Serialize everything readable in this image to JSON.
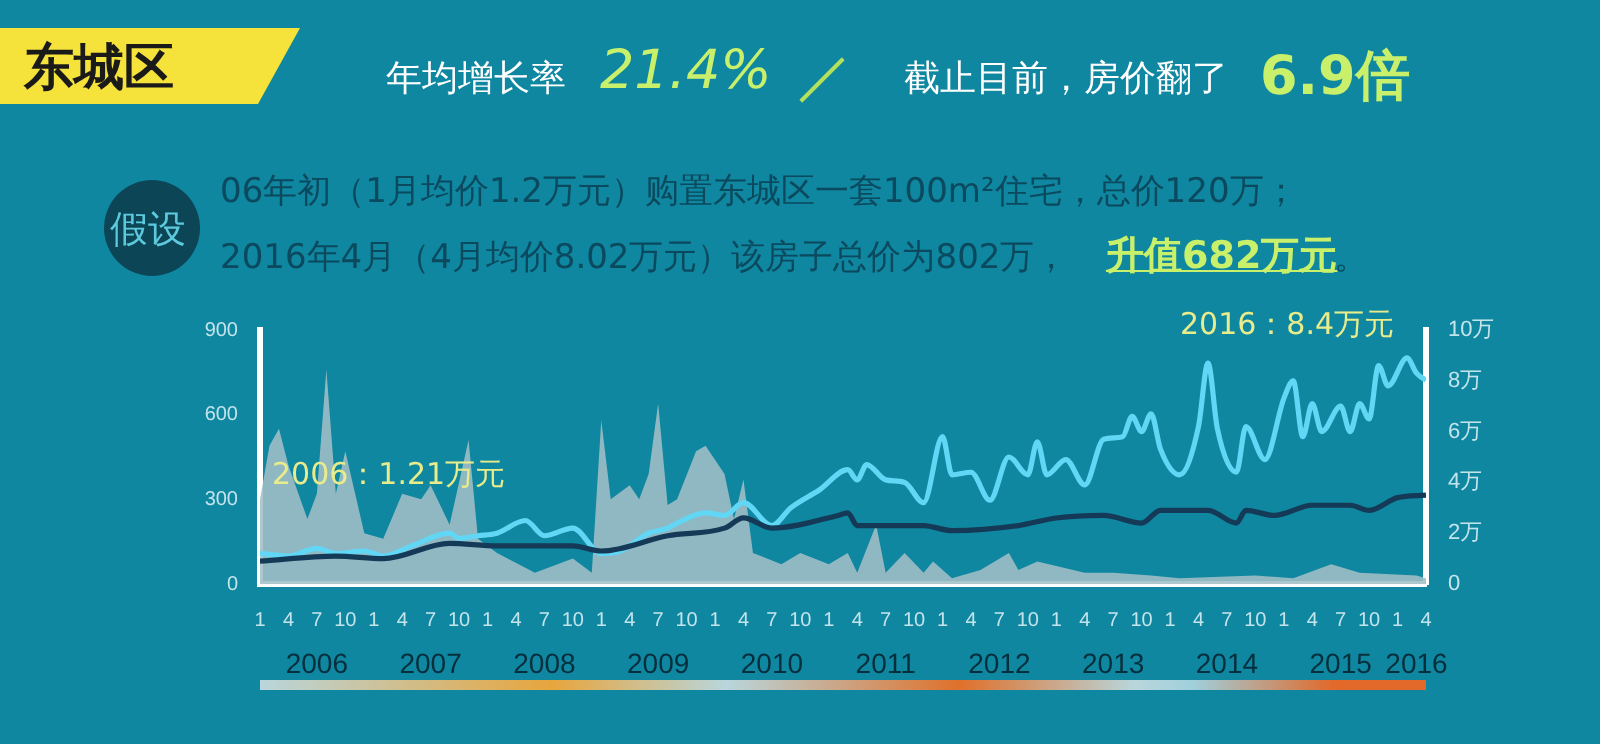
{
  "chart_data": {
    "type": "line",
    "title": "东城区",
    "annotations": [
      "年均增长率",
      "21.4%",
      "截止目前，房价翻了",
      "6.9倍",
      "假设",
      "06年初（1月均价1.2万元）购置东城区一套100m²住宅，总价120万；",
      "2016年4月（4月均价8.02万元）该房子总价为802万，",
      "升值682万元",
      "。",
      "2006：1.21万元",
      "2016：8.4万元"
    ],
    "xlim": [
      "2006-01",
      "2016-04"
    ],
    "xticks": [
      {
        "value": "2006-01",
        "label": "1"
      },
      {
        "value": "2006-04",
        "label": "4"
      },
      {
        "value": "2006-07",
        "label": "7"
      },
      {
        "value": "2006-10",
        "label": "10"
      },
      {
        "value": "2007-01",
        "label": "1"
      },
      {
        "value": "2007-04",
        "label": "4"
      },
      {
        "value": "2007-07",
        "label": "7"
      },
      {
        "value": "2007-10",
        "label": "10"
      },
      {
        "value": "2008-01",
        "label": "1"
      },
      {
        "value": "2008-04",
        "label": "4"
      },
      {
        "value": "2008-07",
        "label": "7"
      },
      {
        "value": "2008-10",
        "label": "10"
      },
      {
        "value": "2009-01",
        "label": "1"
      },
      {
        "value": "2009-04",
        "label": "4"
      },
      {
        "value": "2009-07",
        "label": "7"
      },
      {
        "value": "2009-10",
        "label": "10"
      },
      {
        "value": "2010-01",
        "label": "1"
      },
      {
        "value": "2010-04",
        "label": "4"
      },
      {
        "value": "2010-07",
        "label": "7"
      },
      {
        "value": "2010-10",
        "label": "10"
      },
      {
        "value": "2011-01",
        "label": "1"
      },
      {
        "value": "2011-04",
        "label": "4"
      },
      {
        "value": "2011-07",
        "label": "7"
      },
      {
        "value": "2011-10",
        "label": "10"
      },
      {
        "value": "2012-01",
        "label": "1"
      },
      {
        "value": "2012-04",
        "label": "4"
      },
      {
        "value": "2012-07",
        "label": "7"
      },
      {
        "value": "2012-10",
        "label": "10"
      },
      {
        "value": "2013-01",
        "label": "1"
      },
      {
        "value": "2013-04",
        "label": "4"
      },
      {
        "value": "2013-07",
        "label": "7"
      },
      {
        "value": "2013-10",
        "label": "10"
      },
      {
        "value": "2014-01",
        "label": "1"
      },
      {
        "value": "2014-04",
        "label": "4"
      },
      {
        "value": "2014-07",
        "label": "7"
      },
      {
        "value": "2014-10",
        "label": "10"
      },
      {
        "value": "2015-01",
        "label": "1"
      },
      {
        "value": "2015-04",
        "label": "4"
      },
      {
        "value": "2015-07",
        "label": "7"
      },
      {
        "value": "2015-10",
        "label": "10"
      },
      {
        "value": "2016-01",
        "label": "1"
      },
      {
        "value": "2016-04",
        "label": "4"
      }
    ],
    "x2lim": [
      "2006-01",
      "2016-04"
    ],
    "x2ticks": [
      {
        "value": "2006-07",
        "label": "2006"
      },
      {
        "value": "2007-07",
        "label": "2007"
      },
      {
        "value": "2008-07",
        "label": "2008"
      },
      {
        "value": "2009-07",
        "label": "2009"
      },
      {
        "value": "2010-07",
        "label": "2010"
      },
      {
        "value": "2011-07",
        "label": "2011"
      },
      {
        "value": "2012-07",
        "label": "2012"
      },
      {
        "value": "2013-07",
        "label": "2013"
      },
      {
        "value": "2014-07",
        "label": "2014"
      },
      {
        "value": "2015-07",
        "label": "2015"
      },
      {
        "value": "2016-03",
        "label": "2016"
      }
    ],
    "ylim": [
      0,
      900
    ],
    "yticks": [
      0,
      300,
      600,
      900
    ],
    "y2lim": [
      0,
      10
    ],
    "y2ticks": [
      0,
      {
        "value": 2,
        "label": "2万"
      },
      {
        "value": 4,
        "label": "4万"
      },
      {
        "value": 6,
        "label": "6万"
      },
      {
        "value": 8,
        "label": "8万"
      },
      {
        "value": 10,
        "label": "10万"
      }
    ],
    "series": [
      {
        "type": "area",
        "color": "#a3bfc6",
        "x": [
          "2006-01",
          "2006-02",
          "2006-03",
          "2006-04",
          "2006-06",
          "2006-07",
          "2006-08",
          "2006-09",
          "2006-10",
          "2006-12",
          "2007-02",
          "2007-04",
          "2007-06",
          "2007-07",
          "2007-09",
          "2007-11",
          "2007-12",
          "2008-02",
          "2008-06",
          "2008-10",
          "2008-12",
          "2009-01",
          "2009-02",
          "2009-04",
          "2009-05",
          "2009-06",
          "2009-07",
          "2009-08",
          "2009-09",
          "2009-11",
          "2009-12",
          "2010-02",
          "2010-03",
          "2010-04",
          "2010-05",
          "2010-08",
          "2010-10",
          "2011-01",
          "2011-03",
          "2011-04",
          "2011-06",
          "2011-07",
          "2011-09",
          "2011-11",
          "2011-12",
          "2012-02",
          "2012-05",
          "2012-08",
          "2012-09",
          "2012-11",
          "2013-04",
          "2013-07",
          "2013-11",
          "2014-02",
          "2014-10",
          "2015-02",
          "2015-06",
          "2015-09",
          "2016-03",
          "2016-04"
        ],
        "values": [
          300,
          490,
          550,
          420,
          230,
          320,
          760,
          320,
          470,
          180,
          160,
          320,
          300,
          350,
          210,
          510,
          160,
          110,
          40,
          90,
          40,
          580,
          300,
          350,
          300,
          390,
          640,
          280,
          300,
          470,
          490,
          390,
          230,
          370,
          110,
          70,
          110,
          70,
          110,
          40,
          210,
          40,
          110,
          40,
          80,
          20,
          50,
          110,
          50,
          80,
          40,
          40,
          30,
          20,
          30,
          20,
          70,
          40,
          30,
          20
        ]
      },
      {
        "type": "line",
        "axis": "y2",
        "color": "#62d6f5",
        "x": [
          "2006-01",
          "2006-04",
          "2006-07",
          "2006-09",
          "2006-12",
          "2007-02",
          "2007-05",
          "2007-09",
          "2007-10",
          "2007-12",
          "2008-02",
          "2008-05",
          "2008-07",
          "2008-10",
          "2009-01",
          "2009-03",
          "2009-06",
          "2009-08",
          "2009-09",
          "2009-12",
          "2010-02",
          "2010-04",
          "2010-07",
          "2010-09",
          "2010-12",
          "2011-03",
          "2011-04",
          "2011-05",
          "2011-07",
          "2011-09",
          "2011-11",
          "2012-01",
          "2012-02",
          "2012-04",
          "2012-06",
          "2012-08",
          "2012-10",
          "2012-11",
          "2012-12",
          "2013-02",
          "2013-04",
          "2013-06",
          "2013-08",
          "2013-09",
          "2013-10",
          "2013-11",
          "2013-12",
          "2014-02",
          "2014-04",
          "2014-05",
          "2014-06",
          "2014-08",
          "2014-09",
          "2014-11",
          "2015-01",
          "2015-02",
          "2015-03",
          "2015-04",
          "2015-05",
          "2015-07",
          "2015-08",
          "2015-09",
          "2015-10",
          "2015-11",
          "2015-12",
          "2016-02",
          "2016-03",
          "2016-04"
        ],
        "values": [
          1.21,
          1.1,
          1.4,
          1.2,
          1.3,
          1.1,
          1.5,
          2.0,
          1.8,
          1.9,
          2.0,
          2.5,
          1.9,
          2.2,
          1.2,
          1.3,
          2.0,
          2.2,
          2.4,
          2.8,
          2.7,
          3.2,
          2.3,
          3.0,
          3.7,
          4.5,
          4.1,
          4.7,
          4.1,
          4.0,
          3.2,
          5.8,
          4.3,
          4.4,
          3.3,
          5.0,
          4.3,
          5.6,
          4.3,
          4.9,
          3.9,
          5.7,
          5.8,
          6.6,
          6.0,
          6.7,
          5.3,
          4.3,
          6.2,
          8.7,
          6.1,
          4.4,
          6.2,
          4.9,
          7.3,
          8.0,
          5.8,
          7.1,
          6.0,
          7.0,
          6.0,
          7.1,
          6.5,
          8.6,
          7.8,
          8.9,
          8.3,
          8.02
        ]
      },
      {
        "type": "line",
        "axis": "y2",
        "color": "#143a57",
        "x": [
          "2006-01",
          "2006-09",
          "2007-02",
          "2007-09",
          "2008-02",
          "2008-10",
          "2009-01",
          "2009-08",
          "2010-02",
          "2010-04",
          "2010-07",
          "2011-02",
          "2011-03",
          "2011-04",
          "2011-11",
          "2012-02",
          "2012-09",
          "2013-01",
          "2013-06",
          "2013-10",
          "2013-12",
          "2014-05",
          "2014-08",
          "2014-09",
          "2014-12",
          "2015-04",
          "2015-08",
          "2015-10",
          "2016-01",
          "2016-04"
        ],
        "values": [
          0.9,
          1.1,
          1.0,
          1.6,
          1.5,
          1.5,
          1.3,
          1.9,
          2.2,
          2.6,
          2.2,
          2.7,
          2.8,
          2.3,
          2.3,
          2.1,
          2.3,
          2.6,
          2.7,
          2.4,
          2.9,
          2.9,
          2.4,
          2.9,
          2.7,
          3.1,
          3.1,
          2.9,
          3.4,
          3.5
        ]
      }
    ]
  }
}
